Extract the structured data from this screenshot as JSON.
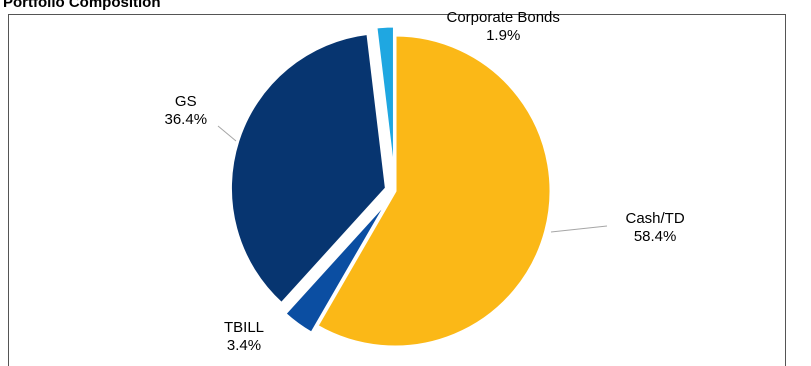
{
  "chart_data": {
    "type": "pie",
    "title": "Portfolio Composition",
    "slices": [
      {
        "label": "Cash/TD",
        "value": 58.4,
        "value_label": "58.4%",
        "color": "#FBB817",
        "exploded": false
      },
      {
        "label": "TBILL",
        "value": 3.4,
        "value_label": "3.4%",
        "color": "#0B4EA2",
        "exploded": true
      },
      {
        "label": "GS",
        "value": 36.4,
        "value_label": "36.4%",
        "color": "#073570",
        "exploded": true
      },
      {
        "label": "Corporate Bonds",
        "value": 1.9,
        "value_label": "1.9%",
        "color": "#1FA7E1",
        "exploded": true
      }
    ],
    "legend": "none",
    "start_angle_deg": 0,
    "direction": "clockwise"
  }
}
